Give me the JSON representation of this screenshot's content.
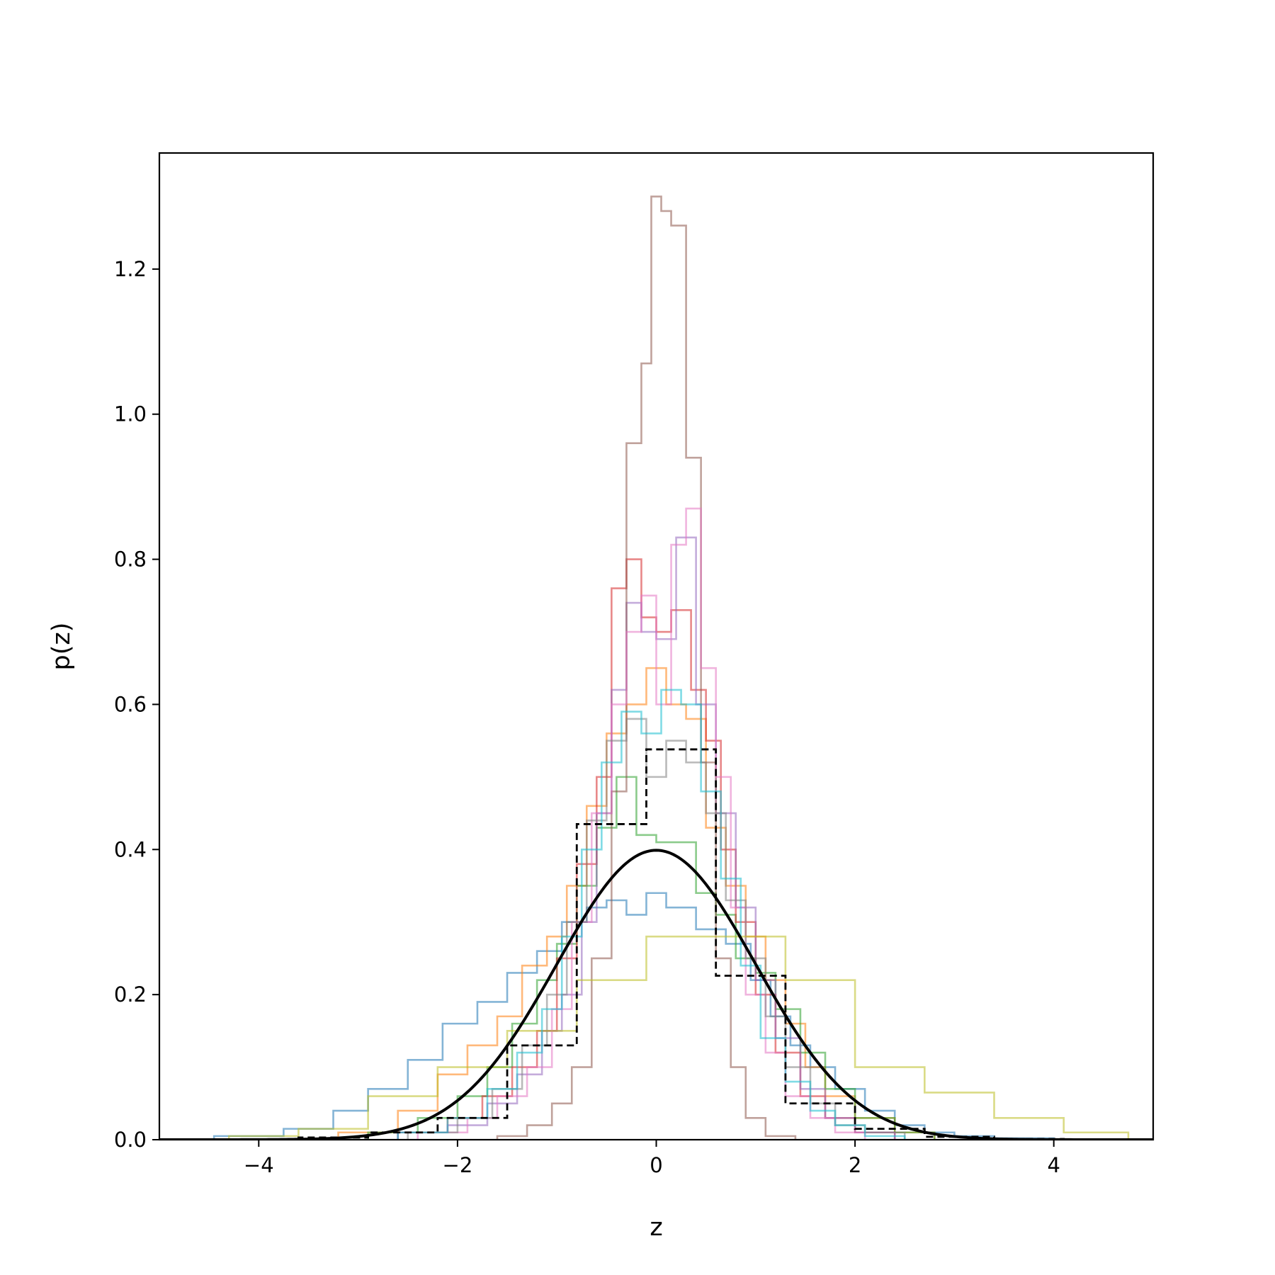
{
  "chart_data": {
    "type": "histogram",
    "xlabel": "z",
    "ylabel": "p(z)",
    "xlim": [
      -5,
      5
    ],
    "ylim": [
      0,
      1.36
    ],
    "grid": false,
    "legend": "none",
    "x_ticks": [
      -4,
      -2,
      0,
      2,
      4
    ],
    "x_tick_labels": [
      "−4",
      "−2",
      "0",
      "2",
      "4"
    ],
    "y_ticks": [
      0.0,
      0.2,
      0.4,
      0.6,
      0.8,
      1.0,
      1.2
    ],
    "y_tick_labels": [
      "0.0",
      "0.2",
      "0.4",
      "0.6",
      "0.8",
      "1.0",
      "1.2"
    ],
    "series": [
      {
        "color": "#1f77b4",
        "bins": [
          -4.45,
          -3.75,
          -3.25,
          -2.9,
          -2.5,
          -2.15,
          -1.8,
          -1.5,
          -1.2,
          -0.95,
          -0.7,
          -0.5,
          -0.3,
          -0.1,
          0.1,
          0.4,
          0.7,
          0.95,
          1.15,
          1.35,
          1.55,
          1.8,
          2.1,
          2.4,
          2.7,
          3.0,
          3.4,
          4.0
        ],
        "values": [
          0.005,
          0.015,
          0.04,
          0.07,
          0.11,
          0.16,
          0.19,
          0.23,
          0.26,
          0.3,
          0.32,
          0.33,
          0.31,
          0.34,
          0.32,
          0.29,
          0.27,
          0.22,
          0.17,
          0.13,
          0.1,
          0.07,
          0.04,
          0.02,
          0.01,
          0.005,
          0.002
        ]
      },
      {
        "color": "#ff7f0e",
        "bins": [
          -3.2,
          -2.6,
          -2.2,
          -1.9,
          -1.6,
          -1.35,
          -1.1,
          -0.9,
          -0.7,
          -0.5,
          -0.3,
          -0.1,
          0.1,
          0.3,
          0.5,
          0.7,
          0.9,
          1.1,
          1.3,
          1.5,
          1.7,
          2.0,
          2.4,
          2.8
        ],
        "values": [
          0.01,
          0.04,
          0.09,
          0.13,
          0.17,
          0.24,
          0.28,
          0.35,
          0.46,
          0.56,
          0.6,
          0.65,
          0.6,
          0.58,
          0.43,
          0.35,
          0.28,
          0.22,
          0.16,
          0.1,
          0.06,
          0.03,
          0.01
        ]
      },
      {
        "color": "#2ca02c",
        "bins": [
          -2.9,
          -2.4,
          -2.0,
          -1.7,
          -1.45,
          -1.2,
          -1.0,
          -0.8,
          -0.6,
          -0.4,
          -0.2,
          0.0,
          0.2,
          0.4,
          0.6,
          0.8,
          1.0,
          1.2,
          1.45,
          1.7,
          2.0,
          2.4,
          2.8
        ],
        "values": [
          0.01,
          0.03,
          0.06,
          0.1,
          0.16,
          0.22,
          0.27,
          0.35,
          0.43,
          0.5,
          0.42,
          0.41,
          0.41,
          0.34,
          0.31,
          0.25,
          0.23,
          0.18,
          0.12,
          0.07,
          0.03,
          0.01
        ]
      },
      {
        "color": "#d62728",
        "bins": [
          -2.6,
          -2.1,
          -1.75,
          -1.45,
          -1.2,
          -1.0,
          -0.8,
          -0.6,
          -0.45,
          -0.3,
          -0.15,
          0.0,
          0.15,
          0.35,
          0.5,
          0.65,
          0.8,
          1.0,
          1.2,
          1.45,
          1.7,
          2.0,
          2.4
        ],
        "values": [
          0.01,
          0.03,
          0.06,
          0.1,
          0.15,
          0.25,
          0.38,
          0.5,
          0.76,
          0.8,
          0.72,
          0.7,
          0.73,
          0.62,
          0.55,
          0.4,
          0.3,
          0.2,
          0.12,
          0.06,
          0.03,
          0.01
        ]
      },
      {
        "color": "#9467bd",
        "bins": [
          -2.6,
          -2.1,
          -1.7,
          -1.4,
          -1.15,
          -0.95,
          -0.75,
          -0.6,
          -0.45,
          -0.3,
          -0.15,
          0.0,
          0.2,
          0.4,
          0.6,
          0.8,
          1.0,
          1.2,
          1.45,
          1.7,
          2.0,
          2.4
        ],
        "values": [
          0.01,
          0.02,
          0.05,
          0.09,
          0.15,
          0.2,
          0.3,
          0.45,
          0.62,
          0.74,
          0.7,
          0.69,
          0.83,
          0.6,
          0.45,
          0.32,
          0.22,
          0.14,
          0.07,
          0.03,
          0.01
        ]
      },
      {
        "color": "#8c564b",
        "bins": [
          -1.6,
          -1.3,
          -1.05,
          -0.85,
          -0.65,
          -0.45,
          -0.3,
          -0.15,
          -0.05,
          0.05,
          0.15,
          0.3,
          0.45,
          0.6,
          0.75,
          0.9,
          1.1,
          1.4
        ],
        "values": [
          0.005,
          0.02,
          0.05,
          0.1,
          0.25,
          0.48,
          0.96,
          1.07,
          1.3,
          1.28,
          1.26,
          0.94,
          0.52,
          0.25,
          0.1,
          0.03,
          0.005
        ]
      },
      {
        "color": "#e377c2",
        "bins": [
          -2.4,
          -1.9,
          -1.6,
          -1.3,
          -1.05,
          -0.85,
          -0.65,
          -0.45,
          -0.3,
          -0.15,
          0.0,
          0.15,
          0.3,
          0.45,
          0.6,
          0.75,
          0.9,
          1.1,
          1.3,
          1.55,
          1.8,
          2.1
        ],
        "values": [
          0.01,
          0.03,
          0.06,
          0.1,
          0.18,
          0.3,
          0.45,
          0.6,
          0.7,
          0.75,
          0.6,
          0.82,
          0.87,
          0.65,
          0.5,
          0.32,
          0.2,
          0.12,
          0.06,
          0.03,
          0.01
        ]
      },
      {
        "color": "#7f7f7f",
        "bins": [
          -2.5,
          -2.0,
          -1.65,
          -1.35,
          -1.1,
          -0.9,
          -0.7,
          -0.5,
          -0.3,
          -0.1,
          0.1,
          0.3,
          0.5,
          0.7,
          0.9,
          1.1,
          1.3,
          1.55,
          1.8,
          2.1,
          2.5
        ],
        "values": [
          0.01,
          0.03,
          0.07,
          0.13,
          0.2,
          0.3,
          0.44,
          0.55,
          0.58,
          0.5,
          0.55,
          0.52,
          0.45,
          0.33,
          0.25,
          0.17,
          0.1,
          0.05,
          0.02,
          0.01
        ]
      },
      {
        "color": "#bcbd22",
        "bins": [
          -4.3,
          -3.6,
          -2.9,
          -2.2,
          -1.5,
          -0.8,
          -0.1,
          0.6,
          1.3,
          2.0,
          2.7,
          3.4,
          4.1,
          4.75
        ],
        "values": [
          0.005,
          0.015,
          0.06,
          0.1,
          0.15,
          0.22,
          0.28,
          0.28,
          0.22,
          0.1,
          0.065,
          0.03,
          0.01
        ]
      },
      {
        "color": "#17becf",
        "bins": [
          -2.6,
          -2.1,
          -1.7,
          -1.4,
          -1.15,
          -0.95,
          -0.75,
          -0.55,
          -0.35,
          -0.15,
          0.05,
          0.25,
          0.45,
          0.65,
          0.85,
          1.05,
          1.3,
          1.55,
          1.8,
          2.1,
          2.5
        ],
        "values": [
          0.01,
          0.03,
          0.07,
          0.12,
          0.18,
          0.28,
          0.4,
          0.52,
          0.59,
          0.56,
          0.62,
          0.6,
          0.48,
          0.36,
          0.24,
          0.14,
          0.08,
          0.04,
          0.02,
          0.005
        ]
      }
    ],
    "reference_histogram": {
      "style": "dashed",
      "color": "#000000",
      "bins": [
        -3.6,
        -2.9,
        -2.2,
        -1.5,
        -0.8,
        -0.1,
        0.6,
        1.3,
        2.0,
        2.7,
        3.4,
        4.1
      ],
      "values": [
        0.003,
        0.01,
        0.03,
        0.13,
        0.435,
        0.538,
        0.226,
        0.05,
        0.015,
        0.004,
        0.001
      ]
    },
    "reference_curve": {
      "type": "line",
      "function": "standard normal pdf",
      "mean": 0,
      "std": 1,
      "color": "#000000",
      "x_range": [
        -5,
        5
      ]
    }
  }
}
